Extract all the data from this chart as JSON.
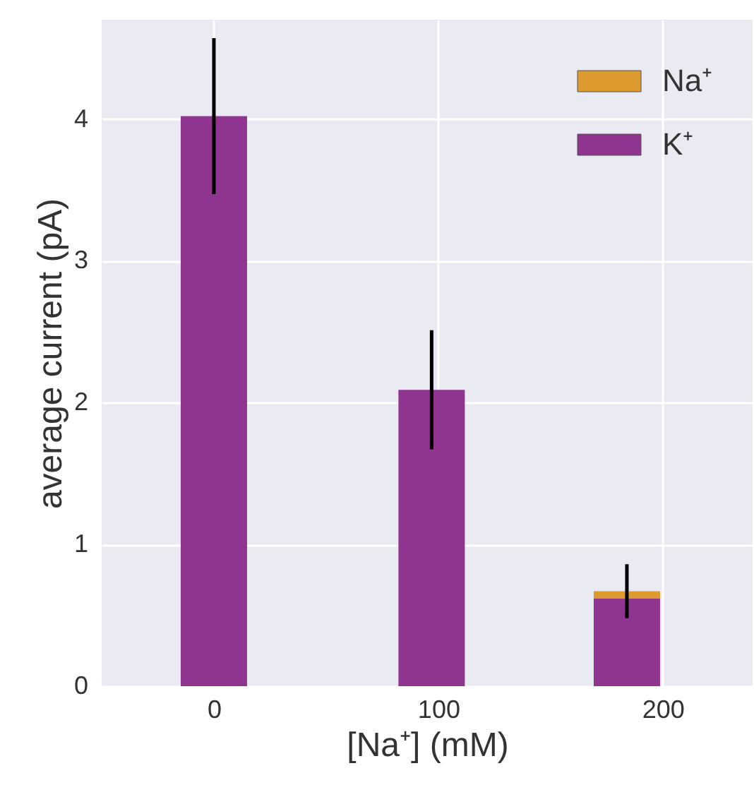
{
  "chart_data": {
    "type": "bar",
    "xlabel": "[Na⁺] (mM)",
    "ylabel": "average current (pA)",
    "x": [
      0,
      97,
      184
    ],
    "stacked": true,
    "series": [
      {
        "name": "K⁺",
        "color": "#8f3590",
        "values": [
          4.02,
          2.09,
          0.62
        ]
      },
      {
        "name": "Na⁺",
        "color": "#dd9a2f",
        "values": [
          0,
          0,
          0.05
        ],
        "errors": [
          0.55,
          0.42,
          0.19
        ]
      }
    ],
    "xlim": [
      -50,
      240
    ],
    "xticks": [
      0,
      100,
      200
    ],
    "ylim": [
      0,
      4.7
    ],
    "yticks": [
      0,
      1,
      2,
      3,
      4
    ],
    "grid": true,
    "legend": "top right"
  }
}
